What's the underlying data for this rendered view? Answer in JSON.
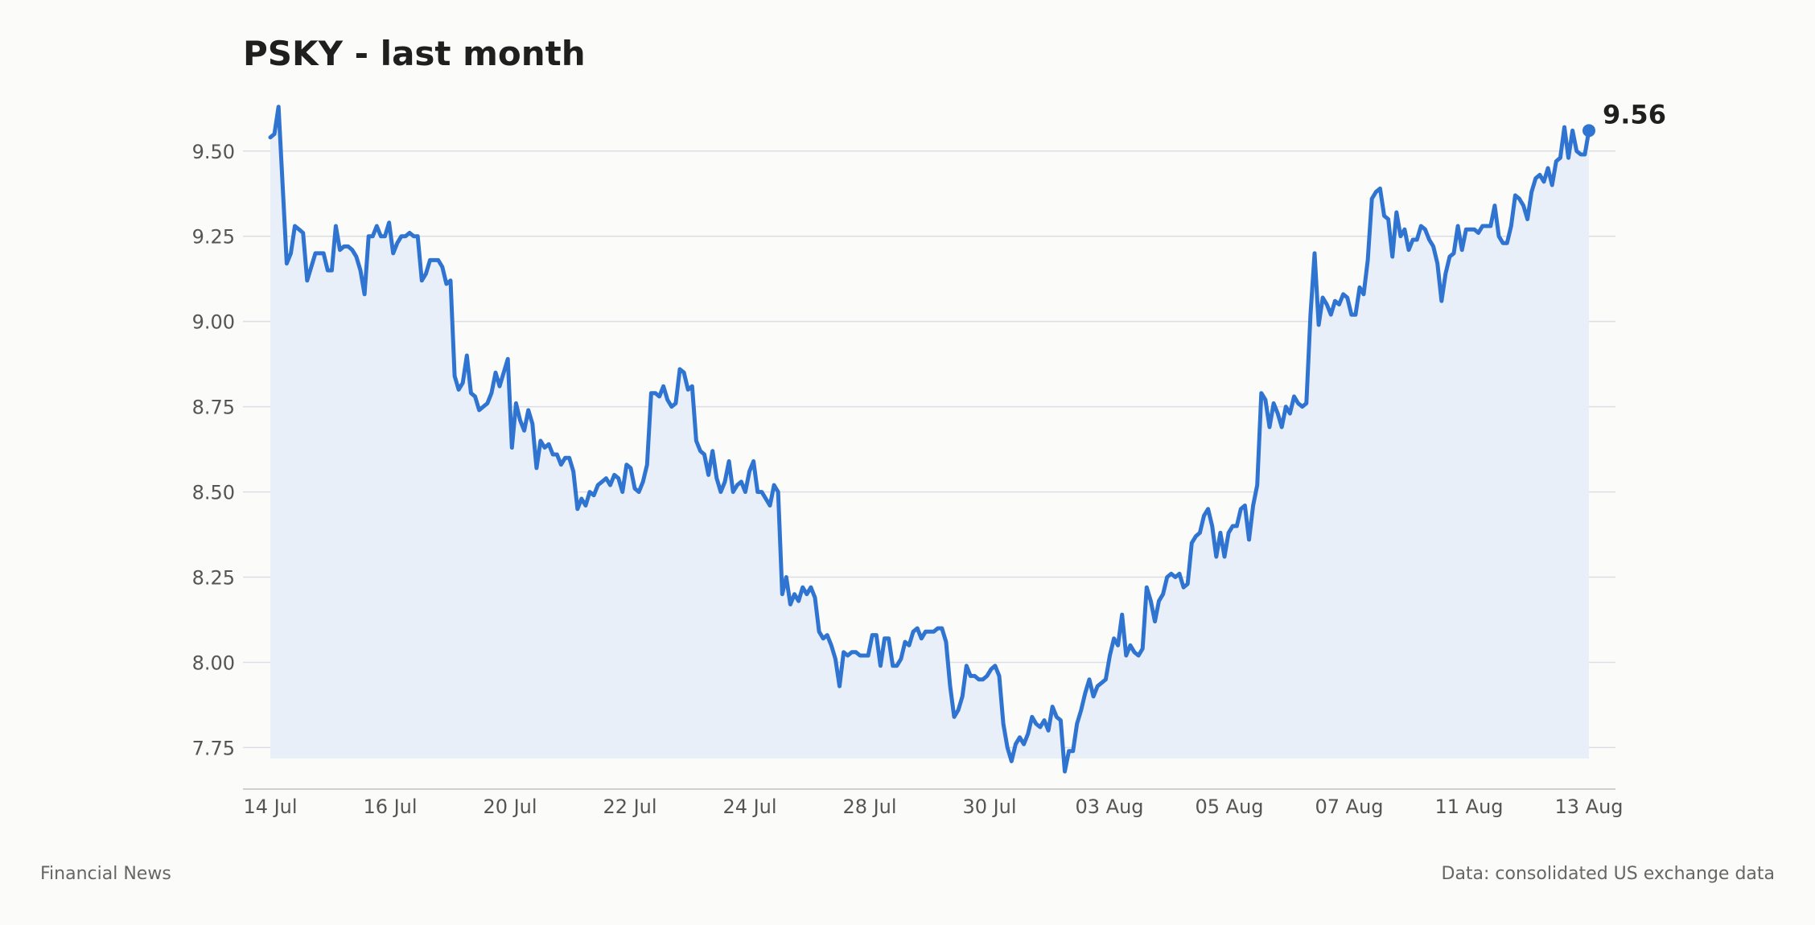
{
  "chart_data": {
    "type": "area",
    "title": "PSKY - last month",
    "xlabel": "",
    "ylabel": "",
    "ylim": [
      7.6,
      9.7
    ],
    "grid": true,
    "legend": "none",
    "x_tick_labels": [
      "14 Jul",
      "16 Jul",
      "20 Jul",
      "22 Jul",
      "24 Jul",
      "28 Jul",
      "30 Jul",
      "03 Aug",
      "05 Aug",
      "07 Aug",
      "11 Aug",
      "13 Aug"
    ],
    "y_ticks": [
      7.75,
      8.0,
      8.25,
      8.5,
      8.75,
      9.0,
      9.25,
      9.5
    ],
    "y_tick_labels": [
      "7.75",
      "8.00",
      "8.25",
      "8.50",
      "8.75",
      "9.00",
      "9.25",
      "9.50"
    ],
    "series": [
      {
        "values": [
          9.54,
          9.55,
          9.63,
          9.4,
          9.17,
          9.2,
          9.28,
          9.27,
          9.26,
          9.12,
          9.16,
          9.2,
          9.2,
          9.2,
          9.15,
          9.15,
          9.28,
          9.21,
          9.22,
          9.22,
          9.21,
          9.19,
          9.15,
          9.08,
          9.25,
          9.25,
          9.28,
          9.25,
          9.25,
          9.29,
          9.2,
          9.23,
          9.25,
          9.25,
          9.26,
          9.25,
          9.25,
          9.12,
          9.14,
          9.18,
          9.18,
          9.18,
          9.16,
          9.11,
          9.12,
          8.84,
          8.8,
          8.82,
          8.9,
          8.79,
          8.78,
          8.74,
          8.75,
          8.76,
          8.79,
          8.85,
          8.81,
          8.85,
          8.89,
          8.63,
          8.76,
          8.71,
          8.68,
          8.74,
          8.7,
          8.57,
          8.65,
          8.63,
          8.64,
          8.61,
          8.61,
          8.58,
          8.6,
          8.6,
          8.56,
          8.45,
          8.48,
          8.46,
          8.5,
          8.49,
          8.52,
          8.53,
          8.54,
          8.52,
          8.55,
          8.54,
          8.5,
          8.58,
          8.57,
          8.51,
          8.5,
          8.53,
          8.58,
          8.79,
          8.79,
          8.78,
          8.81,
          8.77,
          8.75,
          8.76,
          8.86,
          8.85,
          8.8,
          8.81,
          8.65,
          8.62,
          8.61,
          8.55,
          8.62,
          8.54,
          8.5,
          8.53,
          8.59,
          8.5,
          8.52,
          8.53,
          8.5,
          8.56,
          8.59,
          8.5,
          8.5,
          8.48,
          8.46,
          8.52,
          8.5,
          8.2,
          8.25,
          8.17,
          8.2,
          8.18,
          8.22,
          8.2,
          8.22,
          8.19,
          8.09,
          8.07,
          8.08,
          8.05,
          8.01,
          7.93,
          8.03,
          8.02,
          8.03,
          8.03,
          8.02,
          8.02,
          8.02,
          8.08,
          8.08,
          7.99,
          8.07,
          8.07,
          7.99,
          7.99,
          8.01,
          8.06,
          8.05,
          8.09,
          8.1,
          8.07,
          8.09,
          8.09,
          8.09,
          8.1,
          8.1,
          8.06,
          7.93,
          7.84,
          7.86,
          7.9,
          7.99,
          7.96,
          7.96,
          7.95,
          7.95,
          7.96,
          7.98,
          7.99,
          7.96,
          7.82,
          7.75,
          7.71,
          7.76,
          7.78,
          7.76,
          7.79,
          7.84,
          7.82,
          7.81,
          7.83,
          7.8,
          7.87,
          7.84,
          7.83,
          7.68,
          7.74,
          7.74,
          7.82,
          7.86,
          7.91,
          7.95,
          7.9,
          7.93,
          7.94,
          7.95,
          8.02,
          8.07,
          8.05,
          8.14,
          8.02,
          8.05,
          8.03,
          8.02,
          8.04,
          8.22,
          8.18,
          8.12,
          8.18,
          8.2,
          8.25,
          8.26,
          8.25,
          8.26,
          8.22,
          8.23,
          8.35,
          8.37,
          8.38,
          8.43,
          8.45,
          8.4,
          8.31,
          8.38,
          8.31,
          8.38,
          8.4,
          8.4,
          8.45,
          8.46,
          8.36,
          8.46,
          8.52,
          8.79,
          8.77,
          8.69,
          8.76,
          8.73,
          8.69,
          8.75,
          8.73,
          8.78,
          8.76,
          8.75,
          8.76,
          9.02,
          9.2,
          8.99,
          9.07,
          9.05,
          9.02,
          9.06,
          9.05,
          9.08,
          9.07,
          9.02,
          9.02,
          9.1,
          9.08,
          9.18,
          9.36,
          9.38,
          9.39,
          9.31,
          9.3,
          9.19,
          9.32,
          9.25,
          9.27,
          9.21,
          9.24,
          9.24,
          9.28,
          9.27,
          9.24,
          9.22,
          9.17,
          9.06,
          9.14,
          9.19,
          9.2,
          9.28,
          9.21,
          9.27,
          9.27,
          9.27,
          9.26,
          9.28,
          9.28,
          9.28,
          9.34,
          9.25,
          9.23,
          9.23,
          9.28,
          9.37,
          9.36,
          9.34,
          9.3,
          9.38,
          9.42,
          9.43,
          9.41,
          9.45,
          9.4,
          9.47,
          9.48,
          9.57,
          9.48,
          9.56,
          9.5,
          9.49,
          9.49,
          9.56
        ]
      }
    ],
    "last_value_label": "9.56"
  },
  "colors": {
    "line": "#2f74d0",
    "area": "#e9eff9",
    "grid": "#dcdde6",
    "text": "#1f1f1f",
    "muted": "#555555"
  },
  "footer": {
    "source_left": "Financial News",
    "source_right": "Data: consolidated US exchange data"
  }
}
